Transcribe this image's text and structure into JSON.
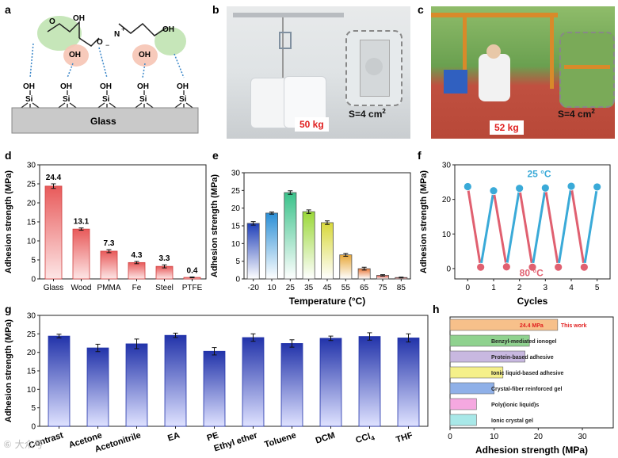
{
  "figure": {
    "panel_labels": [
      "a",
      "b",
      "c",
      "d",
      "e",
      "f",
      "g",
      "h"
    ],
    "panel_a": {
      "oh_label": "OH",
      "si_label": "Si",
      "glass_label": "Glass",
      "carboxyl_top": "OH",
      "carboxyl_o": "O",
      "hydroxyl": "OH",
      "n_plus": "N",
      "plus": "+",
      "minus": "−",
      "o_label": "O"
    },
    "panel_b": {
      "weight": "50 kg",
      "area_label": "S=4 cm",
      "area_sup": "2"
    },
    "panel_c": {
      "weight": "52 kg",
      "area_label": "S=4 cm",
      "area_sup": "2"
    },
    "watermark": "⑥ 大众号"
  },
  "chart_data": [
    {
      "id": "d",
      "type": "bar",
      "title": "",
      "xlabel": "",
      "ylabel": "Adhesion strength (MPa)",
      "categories": [
        "Glass",
        "Wood",
        "PMMA",
        "Fe",
        "Steel",
        "PTFE"
      ],
      "values": [
        24.4,
        13.1,
        7.3,
        4.3,
        3.3,
        0.4
      ],
      "errors": [
        0.6,
        0.3,
        0.4,
        0.3,
        0.4,
        0.1
      ],
      "data_labels": [
        "24.4",
        "13.1",
        "7.3",
        "4.3",
        "3.3",
        "0.4"
      ],
      "ylim": [
        0,
        30
      ],
      "yticks": [
        0,
        5,
        10,
        15,
        20,
        25,
        30
      ],
      "color": "#e85a5a"
    },
    {
      "id": "e",
      "type": "bar",
      "title": "",
      "xlabel": "Temperature (°C)",
      "ylabel": "Adhesion strength (MPa)",
      "categories": [
        "-20",
        "10",
        "25",
        "35",
        "45",
        "55",
        "65",
        "75",
        "85"
      ],
      "values": [
        15.7,
        18.6,
        24.4,
        19.0,
        15.9,
        6.8,
        2.9,
        1.0,
        0.4
      ],
      "errors": [
        0.5,
        0.3,
        0.5,
        0.5,
        0.5,
        0.4,
        0.4,
        0.2,
        0.1
      ],
      "colors": [
        "#1f3fb8",
        "#2b8fd6",
        "#3ac28a",
        "#9ad838",
        "#d8d83a",
        "#e8a83a",
        "#e8783a",
        "#d84a3a",
        "#b81a1a"
      ],
      "ylim": [
        0,
        30
      ],
      "yticks": [
        0,
        5,
        10,
        15,
        20,
        25,
        30
      ]
    },
    {
      "id": "f",
      "type": "line",
      "title": "",
      "xlabel": "Cycles",
      "ylabel": "Adhesion strength (MPa)",
      "series": [
        {
          "name": "25 °C",
          "color": "#3aaad8",
          "x": [
            0,
            1,
            2,
            3,
            4,
            5
          ],
          "values": [
            23.7,
            22.5,
            23.2,
            23.3,
            23.8,
            23.6
          ]
        },
        {
          "name": "80 °C",
          "color": "#e06070",
          "x": [
            0.5,
            1.5,
            2.5,
            3.5,
            4.5
          ],
          "values": [
            0.4,
            0.5,
            0.4,
            0.4,
            0.4
          ]
        }
      ],
      "xlim": [
        -0.5,
        5.5
      ],
      "xticks": [
        0,
        1,
        2,
        3,
        4,
        5
      ],
      "ylim": [
        -3,
        30
      ],
      "yticks": [
        0,
        10,
        20,
        30
      ],
      "annotations": [
        "25 °C",
        "80 °C"
      ]
    },
    {
      "id": "g",
      "type": "bar",
      "title": "",
      "xlabel": "",
      "ylabel": "Adhesion strength (MPa)",
      "categories": [
        "Contrast",
        "Acetone",
        "Acetonitrile",
        "EA",
        "PE",
        "Ethyl ether",
        "Toluene",
        "DCM",
        "CCl",
        "THF"
      ],
      "category_subscripts": [
        "",
        "",
        "",
        "",
        "",
        "",
        "",
        "",
        "4",
        ""
      ],
      "values": [
        24.4,
        21.2,
        22.3,
        24.6,
        20.3,
        24.0,
        22.4,
        23.8,
        24.3,
        23.9
      ],
      "errors": [
        0.5,
        1.0,
        1.3,
        0.6,
        1.0,
        1.0,
        1.0,
        0.6,
        1.0,
        1.1
      ],
      "ylim": [
        0,
        30
      ],
      "yticks": [
        0,
        5,
        10,
        15,
        20,
        25,
        30
      ],
      "color": "#2233aa"
    },
    {
      "id": "h",
      "type": "bar",
      "orientation": "horizontal",
      "title": "",
      "xlabel": "Adhesion strength (MPa)",
      "ylabel": "",
      "categories": [
        "This work",
        "Benzyl-mediated ionogel",
        "Protein-based adhesive",
        "Ionic liquid-based adhesive",
        "Crystal-fiber reinforced gel",
        "Poly(ionic liquid)s",
        "Ionic crystal gel"
      ],
      "values": [
        24.4,
        18.0,
        17.0,
        12.0,
        10.0,
        6.0,
        6.0
      ],
      "colors": [
        "#f7c08a",
        "#8fd28f",
        "#c8b8e0",
        "#f5f08a",
        "#8fb0e8",
        "#f5a8e0",
        "#a8e8e8"
      ],
      "value_label": "24.4 MPa",
      "xlim": [
        0,
        37
      ],
      "xticks": [
        0,
        10,
        20,
        30
      ]
    }
  ]
}
